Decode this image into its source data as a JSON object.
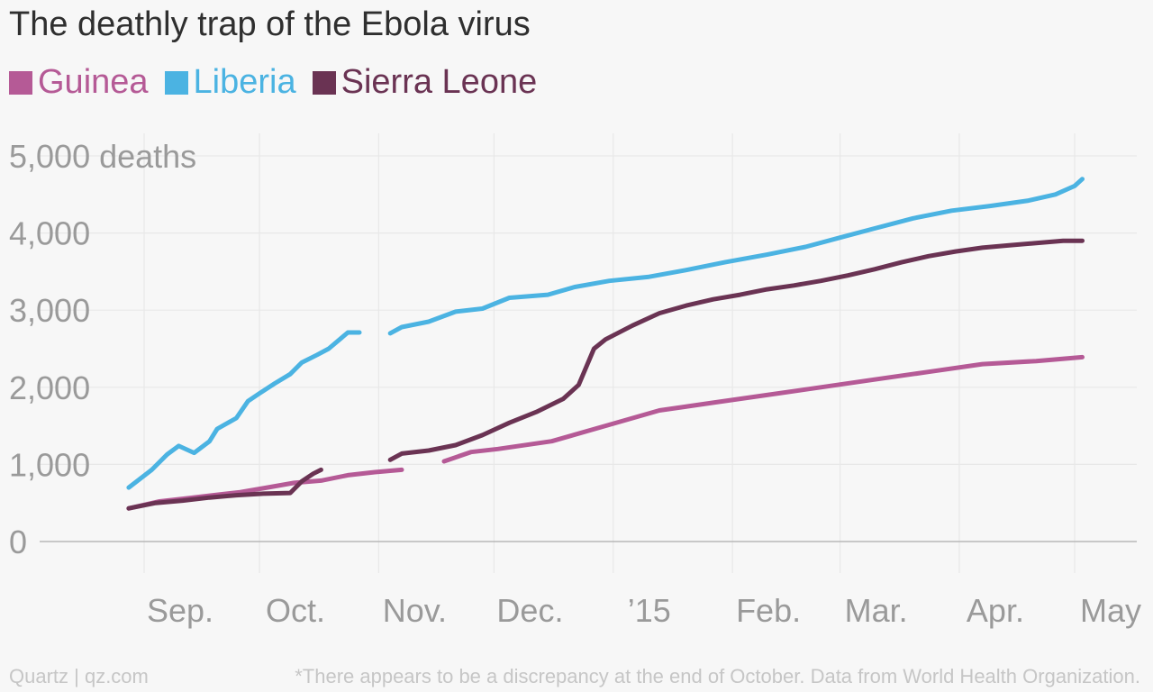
{
  "chart_data": {
    "type": "line",
    "title": "The deathly trap of the Ebola virus",
    "ylabel_unit": "deaths",
    "ylim": [
      0,
      5000
    ],
    "y_ticks": [
      {
        "value": 0,
        "label": "0"
      },
      {
        "value": 1000,
        "label": "1,000"
      },
      {
        "value": 2000,
        "label": "2,000"
      },
      {
        "value": 3000,
        "label": "3,000"
      },
      {
        "value": 4000,
        "label": "4,000"
      },
      {
        "value": 5000,
        "label": "5,000 deaths"
      }
    ],
    "x_ticks": [
      {
        "date": "2014-09-01",
        "label": "Sep."
      },
      {
        "date": "2014-10-01",
        "label": "Oct."
      },
      {
        "date": "2014-11-01",
        "label": "Nov."
      },
      {
        "date": "2014-12-01",
        "label": "Dec."
      },
      {
        "date": "2015-01-01",
        "label": "’15"
      },
      {
        "date": "2015-02-01",
        "label": "Feb."
      },
      {
        "date": "2015-03-01",
        "label": "Mar."
      },
      {
        "date": "2015-04-01",
        "label": "Apr."
      },
      {
        "date": "2015-05-01",
        "label": "May"
      }
    ],
    "grid": true,
    "legend_position": "top-left",
    "series": [
      {
        "name": "Guinea",
        "color": "#b55a96",
        "segments": [
          [
            [
              "2014-08-28",
              430
            ],
            [
              "2014-09-05",
              520
            ],
            [
              "2014-09-12",
              560
            ],
            [
              "2014-09-19",
              600
            ],
            [
              "2014-09-26",
              640
            ],
            [
              "2014-10-03",
              700
            ],
            [
              "2014-10-10",
              760
            ],
            [
              "2014-10-17",
              790
            ],
            [
              "2014-10-24",
              860
            ],
            [
              "2014-10-31",
              900
            ],
            [
              "2014-11-07",
              930
            ]
          ],
          [
            [
              "2014-11-18",
              1040
            ],
            [
              "2014-11-25",
              1160
            ],
            [
              "2014-12-02",
              1200
            ],
            [
              "2014-12-16",
              1300
            ],
            [
              "2014-12-30",
              1500
            ],
            [
              "2015-01-13",
              1700
            ],
            [
              "2015-01-27",
              1800
            ],
            [
              "2015-02-10",
              1900
            ],
            [
              "2015-02-24",
              2000
            ],
            [
              "2015-03-10",
              2100
            ],
            [
              "2015-03-24",
              2200
            ],
            [
              "2015-04-07",
              2300
            ],
            [
              "2015-04-21",
              2340
            ],
            [
              "2015-05-03",
              2390
            ]
          ]
        ]
      },
      {
        "name": "Liberia",
        "color": "#4bb3e2",
        "segments": [
          [
            [
              "2014-08-28",
              700
            ],
            [
              "2014-09-03",
              930
            ],
            [
              "2014-09-07",
              1130
            ],
            [
              "2014-09-10",
              1240
            ],
            [
              "2014-09-14",
              1150
            ],
            [
              "2014-09-18",
              1300
            ],
            [
              "2014-09-20",
              1460
            ],
            [
              "2014-09-25",
              1600
            ],
            [
              "2014-09-28",
              1820
            ],
            [
              "2014-10-01",
              1920
            ],
            [
              "2014-10-05",
              2050
            ],
            [
              "2014-10-09",
              2170
            ],
            [
              "2014-10-12",
              2320
            ],
            [
              "2014-10-16",
              2420
            ],
            [
              "2014-10-19",
              2500
            ],
            [
              "2014-10-24",
              2710
            ],
            [
              "2014-10-27",
              2710
            ]
          ],
          [
            [
              "2014-11-04",
              2700
            ],
            [
              "2014-11-07",
              2780
            ],
            [
              "2014-11-14",
              2850
            ],
            [
              "2014-11-21",
              2980
            ],
            [
              "2014-11-28",
              3020
            ],
            [
              "2014-12-05",
              3160
            ],
            [
              "2014-12-15",
              3200
            ],
            [
              "2014-12-22",
              3300
            ],
            [
              "2014-12-31",
              3380
            ],
            [
              "2015-01-10",
              3430
            ],
            [
              "2015-01-20",
              3520
            ],
            [
              "2015-01-30",
              3620
            ],
            [
              "2015-02-10",
              3720
            ],
            [
              "2015-02-20",
              3820
            ],
            [
              "2015-03-01",
              3940
            ],
            [
              "2015-03-10",
              4060
            ],
            [
              "2015-03-20",
              4190
            ],
            [
              "2015-03-30",
              4290
            ],
            [
              "2015-04-09",
              4350
            ],
            [
              "2015-04-19",
              4420
            ],
            [
              "2015-04-26",
              4500
            ],
            [
              "2015-05-01",
              4610
            ],
            [
              "2015-05-03",
              4700
            ]
          ]
        ]
      },
      {
        "name": "Sierra Leone",
        "color": "#6a3353",
        "segments": [
          [
            [
              "2014-08-28",
              430
            ],
            [
              "2014-09-04",
              500
            ],
            [
              "2014-09-11",
              530
            ],
            [
              "2014-09-18",
              570
            ],
            [
              "2014-09-25",
              600
            ],
            [
              "2014-10-02",
              620
            ],
            [
              "2014-10-09",
              630
            ],
            [
              "2014-10-12",
              780
            ],
            [
              "2014-10-15",
              880
            ],
            [
              "2014-10-17",
              930
            ]
          ],
          [
            [
              "2014-11-04",
              1060
            ],
            [
              "2014-11-07",
              1140
            ],
            [
              "2014-11-14",
              1180
            ],
            [
              "2014-11-21",
              1250
            ],
            [
              "2014-11-28",
              1380
            ],
            [
              "2014-12-05",
              1540
            ],
            [
              "2014-12-12",
              1680
            ],
            [
              "2014-12-19",
              1850
            ],
            [
              "2014-12-23",
              2030
            ],
            [
              "2014-12-27",
              2500
            ],
            [
              "2014-12-30",
              2620
            ],
            [
              "2015-01-06",
              2800
            ],
            [
              "2015-01-13",
              2960
            ],
            [
              "2015-01-20",
              3060
            ],
            [
              "2015-01-27",
              3140
            ],
            [
              "2015-02-03",
              3200
            ],
            [
              "2015-02-10",
              3270
            ],
            [
              "2015-02-17",
              3320
            ],
            [
              "2015-02-24",
              3380
            ],
            [
              "2015-03-03",
              3450
            ],
            [
              "2015-03-10",
              3530
            ],
            [
              "2015-03-17",
              3620
            ],
            [
              "2015-03-24",
              3700
            ],
            [
              "2015-03-31",
              3760
            ],
            [
              "2015-04-07",
              3810
            ],
            [
              "2015-04-14",
              3840
            ],
            [
              "2015-04-21",
              3870
            ],
            [
              "2015-04-28",
              3900
            ],
            [
              "2015-05-03",
              3900
            ]
          ]
        ]
      }
    ]
  },
  "footer": {
    "source_left": "Quartz | qz.com",
    "note_right": "*There appears to be a discrepancy at the end of October. Data from World Health Organization."
  },
  "colors": {
    "axis_text": "#9a9a9a",
    "grid": "#e8e8e8",
    "baseline": "#b8b8b8",
    "footer_text": "#c6c6c6"
  }
}
